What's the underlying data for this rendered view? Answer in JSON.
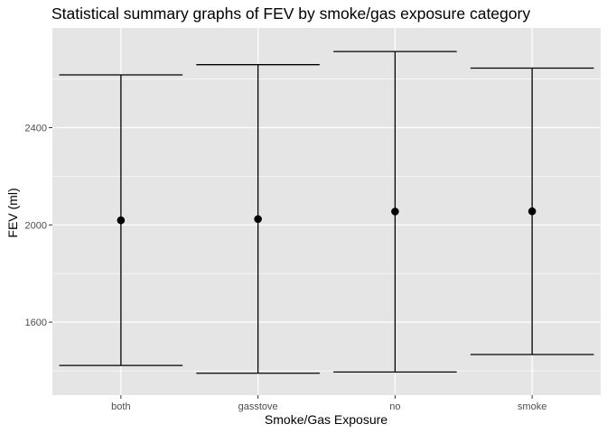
{
  "chart_data": {
    "type": "errorbar",
    "title": "Statistical summary graphs of FEV by smoke/gas exposure category",
    "xlabel": "Smoke/Gas Exposure",
    "ylabel": "FEV (ml)",
    "categories": [
      "both",
      "gasstove",
      "no",
      "smoke"
    ],
    "series": [
      {
        "mean": [
          2019,
          2024,
          2055,
          2056
        ],
        "lower": [
          1422,
          1390,
          1395,
          1467
        ],
        "upper": [
          2617,
          2659,
          2713,
          2645
        ]
      }
    ],
    "yticks": [
      1600,
      2000,
      2400
    ],
    "ylim": [
      1300,
      2810
    ],
    "grid": true,
    "colors": {
      "panel": "#e5e5e5",
      "grid": "#ffffff",
      "marks": "#000000"
    }
  }
}
